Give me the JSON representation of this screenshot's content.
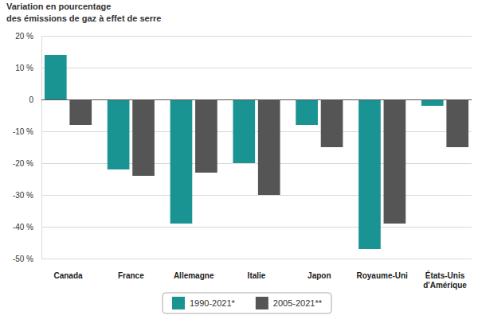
{
  "chart_data": {
    "type": "bar",
    "ylabel": [
      "Variation en pourcentage",
      "des émissions de gaz à effet de serre"
    ],
    "categories": [
      "Canada",
      "France",
      "Allemagne",
      "Italie",
      "Japon",
      "Royaume-Uni",
      "États-Unis d'Amérique"
    ],
    "series": [
      {
        "name": "1990-2021*",
        "color": "#1a9393",
        "values": [
          14,
          -22,
          -39,
          -20,
          -8,
          -47,
          -2
        ]
      },
      {
        "name": "2005-2021**",
        "color": "#555555",
        "values": [
          -8,
          -24,
          -23,
          -30,
          -15,
          -39,
          -15
        ]
      }
    ],
    "ylim": [
      -50,
      20
    ],
    "yticks": [
      {
        "value": -50,
        "label": "-50 %"
      },
      {
        "value": -40,
        "label": "-40 %"
      },
      {
        "value": -30,
        "label": "-30 %"
      },
      {
        "value": -20,
        "label": "-20 %"
      },
      {
        "value": -10,
        "label": "-10 %"
      },
      0,
      {
        "value": 10,
        "label": "10 %"
      },
      {
        "value": 20,
        "label": "20 %"
      }
    ],
    "grid": true,
    "legend": "bottom"
  }
}
